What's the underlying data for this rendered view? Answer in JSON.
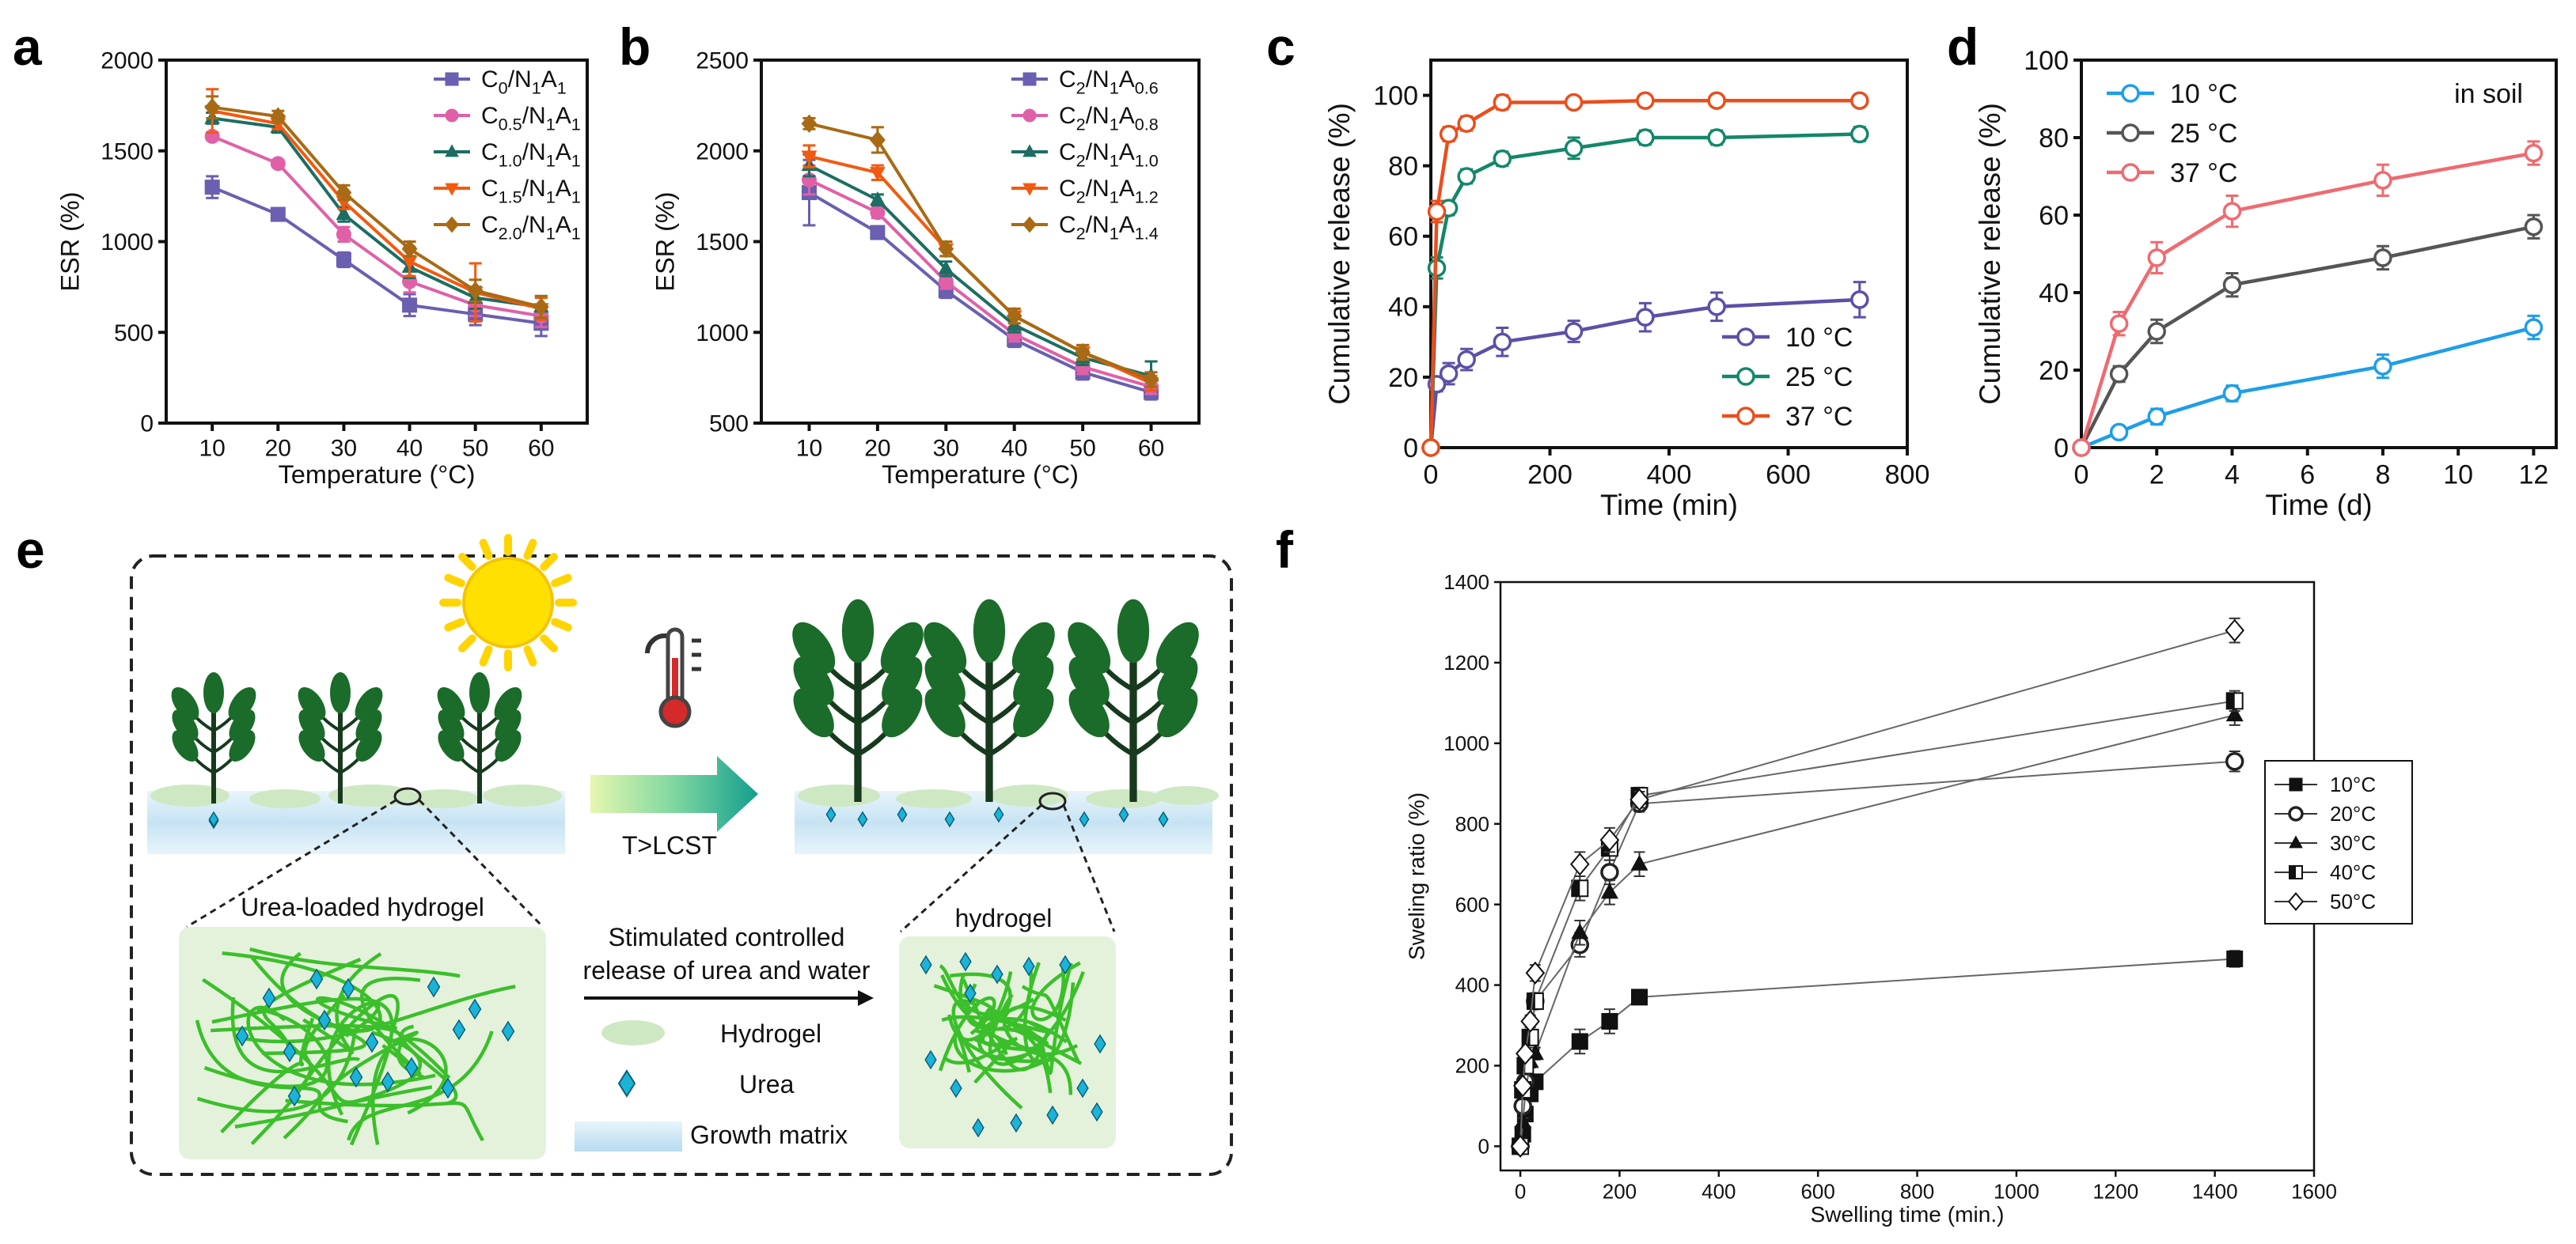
{
  "panels": {
    "a": "a",
    "b": "b",
    "c": "c",
    "d": "d",
    "e": "e",
    "f": "f"
  },
  "chart_data": [
    {
      "panel": "a",
      "type": "line",
      "xlabel": "Temperature (°C)",
      "ylabel": "ESR (%)",
      "xlim": [
        3,
        67
      ],
      "ylim": [
        0,
        2000
      ],
      "xticks": [
        10,
        20,
        30,
        40,
        50,
        60
      ],
      "yticks": [
        0,
        500,
        1000,
        1500,
        2000
      ],
      "legend_position": "top-right",
      "x": [
        10,
        20,
        30,
        40,
        50,
        60
      ],
      "series": [
        {
          "name": "C0/N1A1",
          "base": "C",
          "sub1": "0",
          "mid": "/N",
          "sub2": "1",
          "mid2": "A",
          "sub3": "1",
          "color": "#6a5fb0",
          "marker": "square",
          "values": [
            1300,
            1150,
            900,
            650,
            600,
            550
          ],
          "err": [
            60,
            20,
            40,
            60,
            60,
            70
          ]
        },
        {
          "name": "C0.5/N1A1",
          "base": "C",
          "sub1": "0.5",
          "mid": "/N",
          "sub2": "1",
          "mid2": "A",
          "sub3": "1",
          "color": "#e060a8",
          "marker": "circle",
          "values": [
            1580,
            1430,
            1040,
            780,
            650,
            590
          ],
          "err": [
            20,
            20,
            40,
            60,
            60,
            60
          ]
        },
        {
          "name": "C1.0/N1A1",
          "base": "C",
          "sub1": "1.0",
          "mid": "/N",
          "sub2": "1",
          "mid2": "A",
          "sub3": "1",
          "color": "#1c6e62",
          "marker": "triangle",
          "values": [
            1680,
            1630,
            1150,
            860,
            690,
            640
          ],
          "err": [
            30,
            30,
            40,
            60,
            60,
            60
          ]
        },
        {
          "name": "C1.5/N1A1",
          "base": "C",
          "sub1": "1.5",
          "mid": "/N",
          "sub2": "1",
          "mid2": "A",
          "sub3": "1",
          "color": "#f25a10",
          "marker": "triangle-down",
          "values": [
            1720,
            1650,
            1220,
            890,
            720,
            630
          ],
          "err": [
            120,
            30,
            40,
            80,
            160,
            60
          ]
        },
        {
          "name": "C2.0/N1A1",
          "base": "C",
          "sub1": "2.0",
          "mid": "/N",
          "sub2": "1",
          "mid2": "A",
          "sub3": "1",
          "color": "#a86a14",
          "marker": "diamond",
          "values": [
            1740,
            1690,
            1270,
            960,
            730,
            640
          ],
          "err": [
            60,
            30,
            40,
            40,
            60,
            60
          ]
        }
      ]
    },
    {
      "panel": "b",
      "type": "line",
      "xlabel": "Temperature (°C)",
      "ylabel": "ESR (%)",
      "xlim": [
        3,
        67
      ],
      "ylim": [
        500,
        2500
      ],
      "xticks": [
        10,
        20,
        30,
        40,
        50,
        60
      ],
      "yticks": [
        500,
        1000,
        1500,
        2000,
        2500
      ],
      "legend_position": "top-right",
      "x": [
        10,
        20,
        30,
        40,
        50,
        60
      ],
      "series": [
        {
          "name": "C2/N1A0.6",
          "base": "C",
          "sub1": "2",
          "mid": "/N",
          "sub2": "1",
          "mid2": "A",
          "sub3": "0.6",
          "color": "#6a5fb0",
          "marker": "square",
          "values": [
            1770,
            1550,
            1230,
            960,
            780,
            670
          ],
          "err": [
            180,
            30,
            40,
            40,
            40,
            40
          ]
        },
        {
          "name": "C2/N1A0.8",
          "base": "C",
          "sub1": "2",
          "mid": "/N",
          "sub2": "1",
          "mid2": "A",
          "sub3": "0.8",
          "color": "#e060a8",
          "marker": "circle",
          "values": [
            1840,
            1660,
            1280,
            990,
            810,
            700
          ],
          "err": [
            80,
            30,
            40,
            40,
            40,
            40
          ]
        },
        {
          "name": "C2/N1A1.0",
          "base": "C",
          "sub1": "2",
          "mid": "/N",
          "sub2": "1",
          "mid2": "A",
          "sub3": "1.0",
          "color": "#1c6e62",
          "marker": "triangle",
          "values": [
            1920,
            1730,
            1350,
            1040,
            860,
            760
          ],
          "err": [
            60,
            30,
            40,
            40,
            40,
            80
          ]
        },
        {
          "name": "C2/N1A1.2",
          "base": "C",
          "sub1": "2",
          "mid": "/N",
          "sub2": "1",
          "mid2": "A",
          "sub3": "1.2",
          "color": "#f25a10",
          "marker": "triangle-down",
          "values": [
            1970,
            1880,
            1460,
            1090,
            890,
            720
          ],
          "err": [
            60,
            40,
            40,
            40,
            40,
            40
          ]
        },
        {
          "name": "C2/N1A1.4",
          "base": "C",
          "sub1": "2",
          "mid": "/N",
          "sub2": "1",
          "mid2": "A",
          "sub3": "1.4",
          "color": "#a86a14",
          "marker": "diamond",
          "values": [
            2150,
            2060,
            1460,
            1090,
            890,
            740
          ],
          "err": [
            30,
            70,
            40,
            40,
            40,
            40
          ]
        }
      ]
    },
    {
      "panel": "c",
      "type": "line",
      "xlabel": "Time (min)",
      "ylabel": "Cumulative release (%)",
      "xlim": [
        0,
        800
      ],
      "ylim": [
        0,
        110
      ],
      "xticks": [
        0,
        200,
        400,
        600,
        800
      ],
      "yticks": [
        0,
        20,
        40,
        60,
        80,
        100
      ],
      "legend_position": "bottom-right",
      "series": [
        {
          "name": "10 °C",
          "color": "#5e4fa8",
          "marker": "circle-open",
          "x": [
            0,
            10,
            30,
            60,
            120,
            240,
            360,
            480,
            720
          ],
          "values": [
            0,
            18,
            21,
            25,
            30,
            33,
            37,
            40,
            42
          ],
          "err": [
            0,
            2,
            3,
            3,
            4,
            3,
            4,
            4,
            5
          ]
        },
        {
          "name": "25 °C",
          "color": "#13876a",
          "marker": "circle-open",
          "x": [
            0,
            10,
            30,
            60,
            120,
            240,
            360,
            480,
            720
          ],
          "values": [
            0,
            51,
            68,
            77,
            82,
            85,
            88,
            88,
            89
          ],
          "err": [
            0,
            3,
            2,
            2,
            2,
            3,
            2,
            2,
            2
          ]
        },
        {
          "name": "37 °C",
          "color": "#ea4e1c",
          "marker": "circle-open",
          "x": [
            0,
            10,
            30,
            60,
            120,
            240,
            360,
            480,
            720
          ],
          "values": [
            0,
            67,
            89,
            92,
            98,
            98,
            98.5,
            98.5,
            98.5
          ],
          "err": [
            0,
            3,
            2,
            2,
            2,
            1,
            1,
            1,
            1
          ]
        }
      ]
    },
    {
      "panel": "d",
      "type": "line",
      "xlabel": "Time (d)",
      "ylabel": "Cumulative release (%)",
      "annotation": "in soil",
      "xlim": [
        0,
        12.6
      ],
      "ylim": [
        0,
        100
      ],
      "xticks": [
        0,
        2,
        4,
        6,
        8,
        10,
        12
      ],
      "yticks": [
        0,
        20,
        40,
        60,
        80,
        100
      ],
      "legend_position": "top-left",
      "series": [
        {
          "name": "10 °C",
          "color": "#1e9ee8",
          "marker": "circle-open",
          "x": [
            0,
            1,
            2,
            4,
            8,
            12
          ],
          "values": [
            0,
            4,
            8,
            14,
            21,
            31
          ],
          "err": [
            0,
            1,
            2,
            2,
            3,
            3
          ]
        },
        {
          "name": "25 °C",
          "color": "#555555",
          "marker": "circle-open",
          "x": [
            0,
            1,
            2,
            4,
            8,
            12
          ],
          "values": [
            0,
            19,
            30,
            42,
            49,
            57
          ],
          "err": [
            0,
            2,
            3,
            3,
            3,
            3
          ]
        },
        {
          "name": "37 °C",
          "color": "#f06a70",
          "marker": "circle-open",
          "x": [
            0,
            1,
            2,
            4,
            8,
            12
          ],
          "values": [
            0,
            32,
            49,
            61,
            69,
            76
          ],
          "err": [
            0,
            3,
            4,
            4,
            4,
            3
          ]
        }
      ]
    },
    {
      "panel": "f",
      "type": "line",
      "xlabel": "Swelling time (min.)",
      "ylabel": "Sweling ratio (%)",
      "xlim": [
        -40,
        1600
      ],
      "ylim": [
        -60,
        1400
      ],
      "xticks": [
        0,
        200,
        400,
        600,
        800,
        1000,
        1200,
        1400,
        1600
      ],
      "yticks": [
        0,
        200,
        400,
        600,
        800,
        1000,
        1200,
        1400
      ],
      "legend_position": "right",
      "series": [
        {
          "name": "10°C",
          "color": "#222222",
          "marker": "square-filled",
          "x": [
            0,
            5,
            10,
            20,
            30,
            120,
            180,
            240,
            1440
          ],
          "values": [
            0,
            30,
            80,
            130,
            160,
            260,
            310,
            370,
            465
          ],
          "err": [
            0,
            10,
            10,
            10,
            15,
            30,
            30,
            15,
            20
          ]
        },
        {
          "name": "20°C",
          "color": "#222222",
          "marker": "circle-open",
          "x": [
            0,
            5,
            10,
            20,
            30,
            120,
            180,
            240,
            1440
          ],
          "values": [
            0,
            100,
            160,
            240,
            360,
            500,
            680,
            850,
            955
          ],
          "err": [
            0,
            10,
            10,
            15,
            20,
            30,
            30,
            20,
            25
          ]
        },
        {
          "name": "30°C",
          "color": "#222222",
          "marker": "triangle-filled",
          "x": [
            0,
            5,
            10,
            20,
            30,
            120,
            180,
            240,
            1440
          ],
          "values": [
            0,
            60,
            130,
            210,
            230,
            530,
            630,
            700,
            1070
          ],
          "err": [
            0,
            10,
            10,
            15,
            15,
            30,
            30,
            30,
            25
          ]
        },
        {
          "name": "40°C",
          "color": "#222222",
          "marker": "square-half",
          "x": [
            0,
            5,
            10,
            20,
            30,
            120,
            180,
            240,
            1440
          ],
          "values": [
            0,
            140,
            200,
            270,
            360,
            640,
            740,
            870,
            1105
          ],
          "err": [
            0,
            10,
            10,
            15,
            20,
            30,
            30,
            20,
            25
          ]
        },
        {
          "name": "50°C",
          "color": "#222222",
          "marker": "diamond-open",
          "x": [
            0,
            5,
            10,
            20,
            30,
            120,
            180,
            240,
            1440
          ],
          "values": [
            0,
            150,
            230,
            310,
            430,
            700,
            760,
            860,
            1280
          ],
          "err": [
            0,
            10,
            10,
            15,
            20,
            30,
            30,
            20,
            30
          ]
        }
      ]
    }
  ],
  "diagram_e": {
    "arrow_label": "T>LCST",
    "box_left_title": "Urea-loaded hydrogel",
    "box_right_title": "hydrogel",
    "center_line1": "Stimulated controlled",
    "center_line2": "release of urea and water",
    "legend": {
      "hydrogel": "Hydrogel",
      "urea": "Urea",
      "matrix": "Growth matrix"
    },
    "colors": {
      "leaf": "#1b6b2a",
      "stem": "#173a1e",
      "hydrogel": "#cfe8c4",
      "urea": "#1bb3d8",
      "matrix": "#d3ebf7",
      "sun": "#ffd800",
      "thermo": "#d42a2a",
      "arrow": "#1fae8f",
      "network": "#3bbf2a"
    }
  }
}
